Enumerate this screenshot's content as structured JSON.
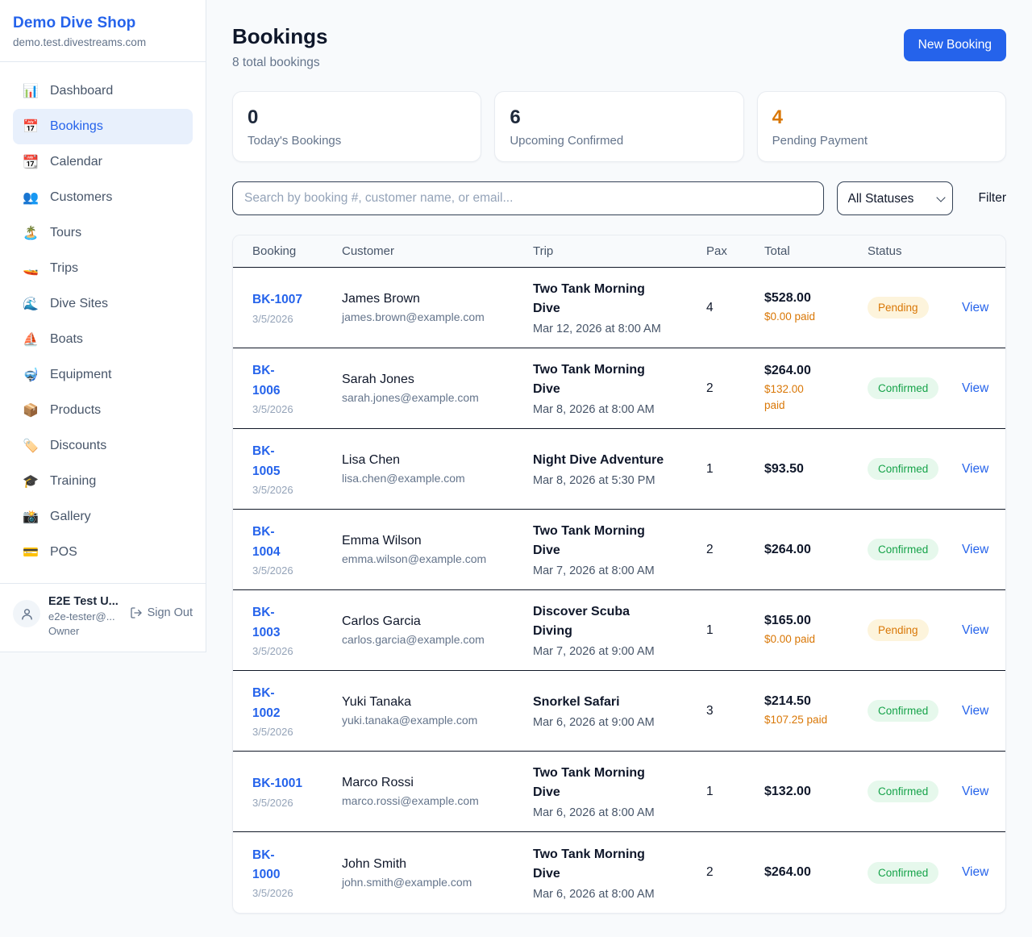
{
  "colors": {
    "accent": "#2563eb",
    "pending_text": "#d97706",
    "pending_bg": "#fdf4dc",
    "confirmed_text": "#16a34a",
    "confirmed_bg": "#e6f8ec"
  },
  "sidebar": {
    "shop_name": "Demo Dive Shop",
    "domain": "demo.test.divestreams.com",
    "items": [
      {
        "icon": "📊",
        "icon_name": "dashboard-icon",
        "label": "Dashboard",
        "active": false
      },
      {
        "icon": "📅",
        "icon_name": "bookings-calendar-icon",
        "label": "Bookings",
        "active": true
      },
      {
        "icon": "📆",
        "icon_name": "calendar-icon",
        "label": "Calendar",
        "active": false
      },
      {
        "icon": "👥",
        "icon_name": "customers-icon",
        "label": "Customers",
        "active": false
      },
      {
        "icon": "🏝️",
        "icon_name": "tours-island-icon",
        "label": "Tours",
        "active": false
      },
      {
        "icon": "🚤",
        "icon_name": "trips-speedboat-icon",
        "label": "Trips",
        "active": false
      },
      {
        "icon": "🌊",
        "icon_name": "dive-sites-wave-icon",
        "label": "Dive Sites",
        "active": false
      },
      {
        "icon": "⛵",
        "icon_name": "boats-sailboat-icon",
        "label": "Boats",
        "active": false
      },
      {
        "icon": "🤿",
        "icon_name": "equipment-mask-icon",
        "label": "Equipment",
        "active": false
      },
      {
        "icon": "📦",
        "icon_name": "products-package-icon",
        "label": "Products",
        "active": false
      },
      {
        "icon": "🏷️",
        "icon_name": "discounts-tag-icon",
        "label": "Discounts",
        "active": false
      },
      {
        "icon": "🎓",
        "icon_name": "training-cap-icon",
        "label": "Training",
        "active": false
      },
      {
        "icon": "📸",
        "icon_name": "gallery-camera-icon",
        "label": "Gallery",
        "active": false
      },
      {
        "icon": "💳",
        "icon_name": "pos-card-icon",
        "label": "POS",
        "active": false
      }
    ],
    "user": {
      "name": "E2E Test U...",
      "email": "e2e-tester@...",
      "role": "Owner",
      "sign_out_label": "Sign Out"
    }
  },
  "header": {
    "title": "Bookings",
    "subtitle": "8 total bookings",
    "new_booking_label": "New Booking"
  },
  "stats": [
    {
      "value": "0",
      "label": "Today's Bookings",
      "highlight": false
    },
    {
      "value": "6",
      "label": "Upcoming Confirmed",
      "highlight": false
    },
    {
      "value": "4",
      "label": "Pending Payment",
      "highlight": true
    }
  ],
  "filters": {
    "search_placeholder": "Search by booking #, customer name, or email...",
    "status_selected": "All Statuses",
    "filter_label": "Filter"
  },
  "table": {
    "columns": [
      "Booking",
      "Customer",
      "Trip",
      "Pax",
      "Total",
      "Status"
    ],
    "rows": [
      {
        "id": "BK-1007",
        "id_display": "BK-1007",
        "date": "3/5/2026",
        "customer": "James Brown",
        "email": "james.brown@example.com",
        "trip_display": "Two Tank Morning\nDive",
        "trip_time": "Mar 12, 2026 at 8:00 AM",
        "pax": "4",
        "total": "$528.00",
        "paid_display": "$0.00 paid",
        "status": "Pending",
        "status_type": "pending",
        "action": "View"
      },
      {
        "id": "BK-1006",
        "id_display": "BK-\n1006",
        "date": "3/5/2026",
        "customer": "Sarah Jones",
        "email": "sarah.jones@example.com",
        "trip_display": "Two Tank Morning\nDive",
        "trip_time": "Mar 8, 2026 at 8:00 AM",
        "pax": "2",
        "total": "$264.00",
        "paid_display": "$132.00\npaid",
        "status": "Confirmed",
        "status_type": "confirmed",
        "action": "View"
      },
      {
        "id": "BK-1005",
        "id_display": "BK-\n1005",
        "date": "3/5/2026",
        "customer": "Lisa Chen",
        "email": "lisa.chen@example.com",
        "trip_display": "Night Dive Adventure",
        "trip_time": "Mar 8, 2026 at 5:30 PM",
        "pax": "1",
        "total": "$93.50",
        "paid_display": "",
        "status": "Confirmed",
        "status_type": "confirmed",
        "action": "View"
      },
      {
        "id": "BK-1004",
        "id_display": "BK-\n1004",
        "date": "3/5/2026",
        "customer": "Emma Wilson",
        "email": "emma.wilson@example.com",
        "trip_display": "Two Tank Morning\nDive",
        "trip_time": "Mar 7, 2026 at 8:00 AM",
        "pax": "2",
        "total": "$264.00",
        "paid_display": "",
        "status": "Confirmed",
        "status_type": "confirmed",
        "action": "View"
      },
      {
        "id": "BK-1003",
        "id_display": "BK-\n1003",
        "date": "3/5/2026",
        "customer": "Carlos Garcia",
        "email": "carlos.garcia@example.com",
        "trip_display": "Discover Scuba\nDiving",
        "trip_time": "Mar 7, 2026 at 9:00 AM",
        "pax": "1",
        "total": "$165.00",
        "paid_display": "$0.00 paid",
        "status": "Pending",
        "status_type": "pending",
        "action": "View"
      },
      {
        "id": "BK-1002",
        "id_display": "BK-\n1002",
        "date": "3/5/2026",
        "customer": "Yuki Tanaka",
        "email": "yuki.tanaka@example.com",
        "trip_display": "Snorkel Safari",
        "trip_time": "Mar 6, 2026 at 9:00 AM",
        "pax": "3",
        "total": "$214.50",
        "paid_display": "$107.25 paid",
        "status": "Confirmed",
        "status_type": "confirmed",
        "action": "View"
      },
      {
        "id": "BK-1001",
        "id_display": "BK-1001",
        "date": "3/5/2026",
        "customer": "Marco Rossi",
        "email": "marco.rossi@example.com",
        "trip_display": "Two Tank Morning\nDive",
        "trip_time": "Mar 6, 2026 at 8:00 AM",
        "pax": "1",
        "total": "$132.00",
        "paid_display": "",
        "status": "Confirmed",
        "status_type": "confirmed",
        "action": "View"
      },
      {
        "id": "BK-1000",
        "id_display": "BK-\n1000",
        "date": "3/5/2026",
        "customer": "John Smith",
        "email": "john.smith@example.com",
        "trip_display": "Two Tank Morning\nDive",
        "trip_time": "Mar 6, 2026 at 8:00 AM",
        "pax": "2",
        "total": "$264.00",
        "paid_display": "",
        "status": "Confirmed",
        "status_type": "confirmed",
        "action": "View"
      }
    ]
  }
}
